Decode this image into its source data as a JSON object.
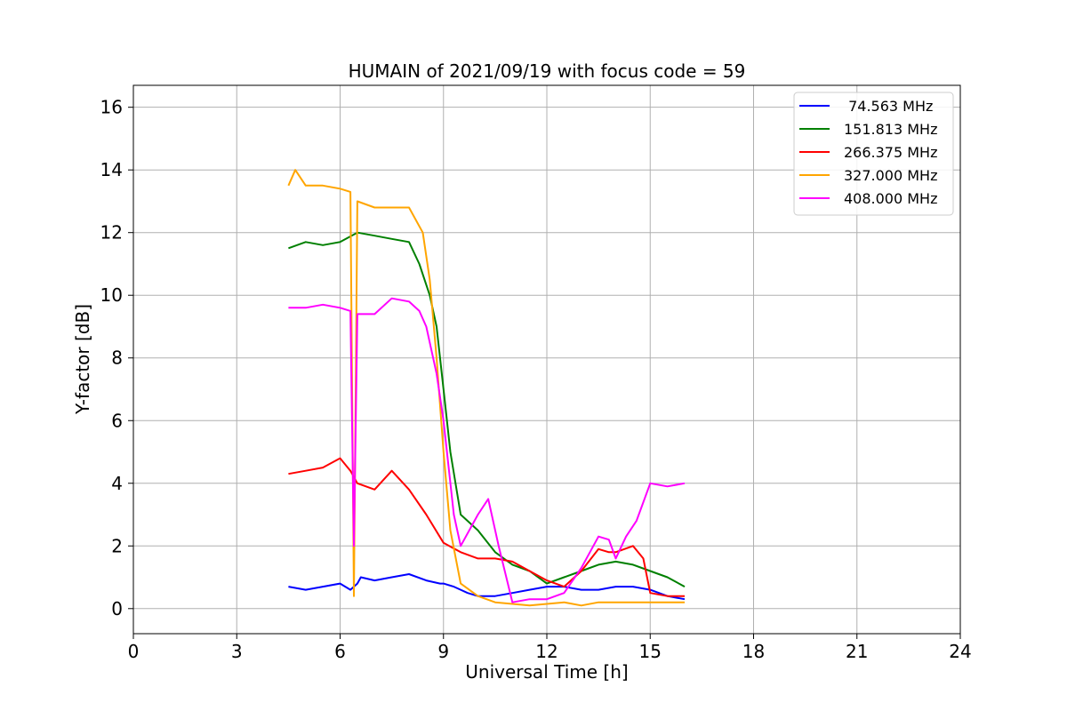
{
  "chart_data": {
    "type": "line",
    "title": "HUMAIN of 2021/09/19 with focus code = 59",
    "xlabel": "Universal Time [h]",
    "ylabel": "Y-factor [dB]",
    "xlim": [
      0,
      24
    ],
    "ylim": [
      -0.8,
      16.7
    ],
    "xticks": [
      0,
      3,
      6,
      9,
      12,
      15,
      18,
      21,
      24
    ],
    "yticks": [
      0,
      2,
      4,
      6,
      8,
      10,
      12,
      14,
      16
    ],
    "grid": true,
    "legend_position": "top-right",
    "series": [
      {
        "name": " 74.563 MHz",
        "color": "#0000ff",
        "x": [
          4.5,
          5.0,
          5.5,
          6.0,
          6.3,
          6.5,
          6.6,
          7.0,
          7.5,
          8.0,
          8.5,
          8.9,
          9.0,
          9.3,
          9.5,
          9.7,
          10.0,
          10.5,
          11.0,
          11.5,
          12.0,
          12.5,
          13.0,
          13.5,
          14.0,
          14.5,
          15.0,
          15.5,
          16.0
        ],
        "y": [
          0.7,
          0.6,
          0.7,
          0.8,
          0.6,
          0.8,
          1.0,
          0.9,
          1.0,
          1.1,
          0.9,
          0.8,
          0.8,
          0.7,
          0.6,
          0.5,
          0.4,
          0.4,
          0.5,
          0.6,
          0.7,
          0.7,
          0.6,
          0.6,
          0.7,
          0.7,
          0.6,
          0.4,
          0.3
        ]
      },
      {
        "name": "151.813 MHz",
        "color": "#008000",
        "x": [
          4.5,
          5.0,
          5.5,
          6.0,
          6.5,
          7.0,
          7.5,
          8.0,
          8.3,
          8.6,
          8.8,
          9.0,
          9.2,
          9.5,
          10.0,
          10.5,
          11.0,
          11.5,
          12.0,
          12.5,
          13.0,
          13.5,
          14.0,
          14.5,
          15.0,
          15.5,
          16.0
        ],
        "y": [
          11.5,
          11.7,
          11.6,
          11.7,
          12.0,
          11.9,
          11.8,
          11.7,
          11.0,
          10.0,
          9.0,
          7.0,
          5.0,
          3.0,
          2.5,
          1.8,
          1.4,
          1.2,
          0.8,
          1.0,
          1.2,
          1.4,
          1.5,
          1.4,
          1.2,
          1.0,
          0.7
        ]
      },
      {
        "name": "266.375 MHz",
        "color": "#ff0000",
        "x": [
          4.5,
          5.0,
          5.5,
          6.0,
          6.3,
          6.5,
          7.0,
          7.5,
          8.0,
          8.5,
          9.0,
          9.5,
          10.0,
          10.5,
          11.0,
          11.5,
          12.0,
          12.5,
          13.0,
          13.5,
          13.8,
          14.0,
          14.5,
          14.8,
          15.0,
          15.5,
          16.0
        ],
        "y": [
          4.3,
          4.4,
          4.5,
          4.8,
          4.4,
          4.0,
          3.8,
          4.4,
          3.8,
          3.0,
          2.1,
          1.8,
          1.6,
          1.6,
          1.5,
          1.2,
          0.9,
          0.7,
          1.2,
          1.9,
          1.8,
          1.8,
          2.0,
          1.6,
          0.5,
          0.4,
          0.4
        ]
      },
      {
        "name": "327.000 MHz",
        "color": "#ffa500",
        "x": [
          4.5,
          4.7,
          5.0,
          5.5,
          6.0,
          6.3,
          6.4,
          6.5,
          7.0,
          7.5,
          8.0,
          8.4,
          8.6,
          8.8,
          9.0,
          9.2,
          9.5,
          10.0,
          10.5,
          11.0,
          11.5,
          12.0,
          12.5,
          13.0,
          13.5,
          14.0,
          14.5,
          15.0,
          15.5,
          16.0
        ],
        "y": [
          13.5,
          14.0,
          13.5,
          13.5,
          13.4,
          13.3,
          0.4,
          13.0,
          12.8,
          12.8,
          12.8,
          12.0,
          10.5,
          8.0,
          5.0,
          2.5,
          0.8,
          0.4,
          0.2,
          0.15,
          0.1,
          0.15,
          0.2,
          0.1,
          0.2,
          0.2,
          0.2,
          0.2,
          0.2,
          0.2
        ]
      },
      {
        "name": "408.000 MHz",
        "color": "#ff00ff",
        "x": [
          4.5,
          5.0,
          5.5,
          6.0,
          6.3,
          6.4,
          6.5,
          7.0,
          7.5,
          8.0,
          8.3,
          8.5,
          8.8,
          9.0,
          9.3,
          9.5,
          10.0,
          10.3,
          10.6,
          11.0,
          11.5,
          12.0,
          12.5,
          13.0,
          13.5,
          13.8,
          14.0,
          14.3,
          14.6,
          15.0,
          15.5,
          16.0
        ],
        "y": [
          9.6,
          9.6,
          9.7,
          9.6,
          9.5,
          2.0,
          9.4,
          9.4,
          9.9,
          9.8,
          9.5,
          9.0,
          7.5,
          6.0,
          3.0,
          2.0,
          3.0,
          3.5,
          2.0,
          0.2,
          0.3,
          0.3,
          0.5,
          1.3,
          2.3,
          2.2,
          1.6,
          2.3,
          2.8,
          4.0,
          3.9,
          4.0
        ]
      }
    ]
  }
}
